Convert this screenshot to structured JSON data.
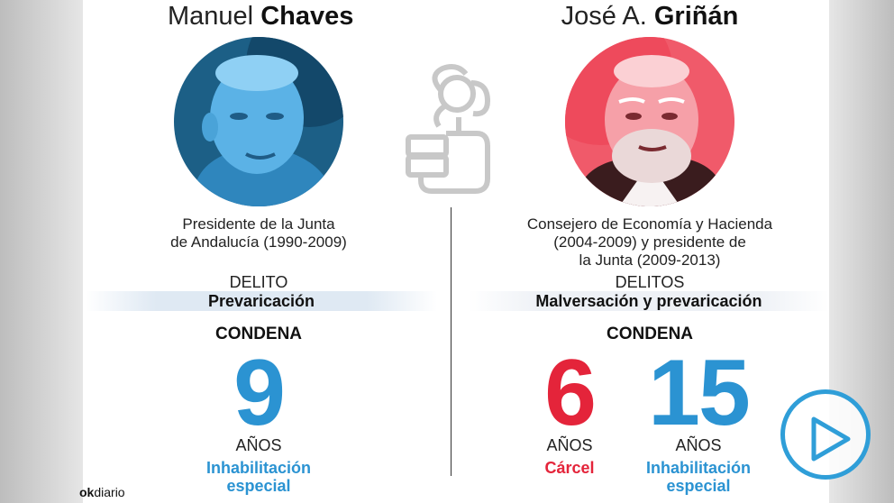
{
  "left": {
    "first_name": "Manuel",
    "last_name": "Chaves",
    "role_line1": "Presidente de la Junta",
    "role_line2": "de Andalucía (1990-2009)",
    "crime_label": "DELITO",
    "crime": "Prevaricación",
    "sentence_label": "CONDENA",
    "years_number": "9",
    "years_unit": "AÑOS",
    "penalty_line1": "Inhabilitación",
    "penalty_line2": "especial"
  },
  "right": {
    "first_name": "José A.",
    "last_name": "Griñán",
    "role_line1": "Consejero de Economía y Hacienda",
    "role_line2": "(2004-2009) y presidente de",
    "role_line3": "la Junta (2009-2013)",
    "crime_label": "DELITOS",
    "crime": "Malversación y prevaricación",
    "sentence_label": "CONDENA",
    "prison_years": "6",
    "prison_unit": "AÑOS",
    "prison_label": "Cárcel",
    "disq_years": "15",
    "disq_unit": "AÑOS",
    "disq_line1": "Inhabilitación",
    "disq_line2": "especial"
  },
  "branding": {
    "ok": "ok",
    "diario": "diario"
  },
  "colors": {
    "blue": "#2b93d2",
    "red": "#e4243a"
  },
  "icons": {
    "center_logo": "rose-fist-logo-icon",
    "play": "play-icon"
  }
}
